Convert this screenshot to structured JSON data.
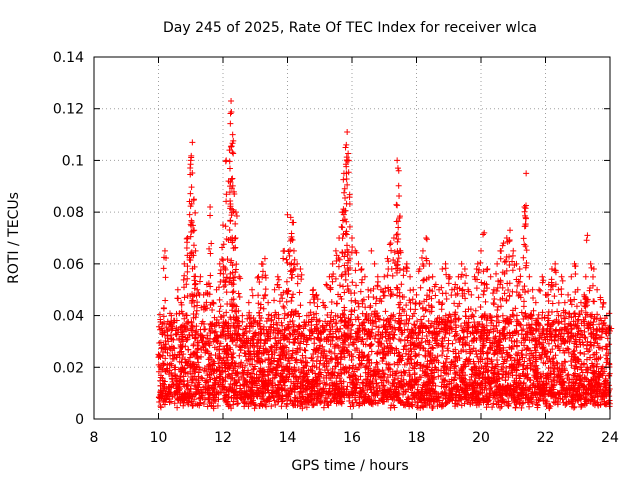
{
  "chart_data": {
    "type": "scatter",
    "title": "Day 245 of 2025, Rate Of TEC Index for receiver wlca",
    "xlabel": "GPS time / hours",
    "ylabel": "ROTI / TECUs",
    "xlim": [
      8,
      24
    ],
    "ylim": [
      0,
      0.14
    ],
    "xticks": [
      "8",
      "10",
      "12",
      "14",
      "16",
      "18",
      "20",
      "22",
      "24"
    ],
    "yticks": [
      "0",
      "0.02",
      "0.04",
      "0.06",
      "0.08",
      "0.1",
      "0.12",
      "0.14"
    ],
    "grid": true,
    "marker": "+",
    "color": "#ff0000",
    "series": [
      {
        "name": "ROTI",
        "x": [
          10.0,
          10.1,
          10.2,
          10.3,
          10.4,
          10.5,
          10.6,
          10.7,
          10.8,
          10.9,
          11.0,
          11.05,
          11.1,
          11.15,
          11.2,
          11.3,
          11.4,
          11.5,
          11.6,
          11.7,
          11.8,
          11.9,
          12.0,
          12.1,
          12.2,
          12.25,
          12.3,
          12.35,
          12.4,
          12.5,
          12.6,
          12.7,
          12.8,
          12.9,
          13.0,
          13.1,
          13.2,
          13.3,
          13.4,
          13.5,
          13.6,
          13.7,
          13.8,
          13.9,
          14.0,
          14.1,
          14.15,
          14.2,
          14.3,
          14.4,
          14.5,
          14.6,
          14.7,
          14.8,
          14.9,
          15.0,
          15.1,
          15.2,
          15.3,
          15.4,
          15.5,
          15.6,
          15.7,
          15.75,
          15.8,
          15.85,
          15.9,
          16.0,
          16.1,
          16.2,
          16.3,
          16.4,
          16.5,
          16.6,
          16.7,
          16.8,
          16.9,
          17.0,
          17.1,
          17.2,
          17.3,
          17.4,
          17.45,
          17.5,
          17.6,
          17.7,
          17.8,
          17.9,
          18.0,
          18.1,
          18.2,
          18.3,
          18.4,
          18.5,
          18.6,
          18.7,
          18.8,
          18.9,
          19.0,
          19.1,
          19.2,
          19.3,
          19.4,
          19.5,
          19.6,
          19.7,
          19.8,
          19.9,
          20.0,
          20.1,
          20.2,
          20.3,
          20.4,
          20.5,
          20.6,
          20.7,
          20.8,
          20.9,
          21.0,
          21.1,
          21.2,
          21.3,
          21.35,
          21.4,
          21.5,
          21.6,
          21.7,
          21.8,
          21.9,
          22.0,
          22.1,
          22.2,
          22.3,
          22.4,
          22.5,
          22.6,
          22.7,
          22.8,
          22.9,
          23.0,
          23.1,
          23.2,
          23.25,
          23.3,
          23.4,
          23.5,
          23.6,
          23.7,
          23.8,
          23.9,
          24.0
        ],
        "y": [
          0.025,
          0.035,
          0.065,
          0.03,
          0.04,
          0.038,
          0.05,
          0.045,
          0.06,
          0.07,
          0.1,
          0.107,
          0.085,
          0.065,
          0.05,
          0.055,
          0.048,
          0.052,
          0.082,
          0.045,
          0.05,
          0.06,
          0.075,
          0.1,
          0.104,
          0.123,
          0.11,
          0.087,
          0.08,
          0.055,
          0.04,
          0.035,
          0.045,
          0.05,
          0.038,
          0.055,
          0.06,
          0.062,
          0.045,
          0.04,
          0.05,
          0.055,
          0.048,
          0.065,
          0.079,
          0.078,
          0.076,
          0.065,
          0.06,
          0.058,
          0.035,
          0.04,
          0.045,
          0.05,
          0.048,
          0.038,
          0.045,
          0.052,
          0.055,
          0.06,
          0.065,
          0.07,
          0.08,
          0.095,
          0.105,
          0.111,
          0.1,
          0.07,
          0.065,
          0.06,
          0.058,
          0.055,
          0.05,
          0.065,
          0.06,
          0.055,
          0.05,
          0.055,
          0.062,
          0.068,
          0.07,
          0.1,
          0.096,
          0.065,
          0.058,
          0.06,
          0.055,
          0.05,
          0.048,
          0.058,
          0.065,
          0.07,
          0.06,
          0.055,
          0.052,
          0.05,
          0.058,
          0.06,
          0.055,
          0.05,
          0.052,
          0.055,
          0.06,
          0.058,
          0.05,
          0.048,
          0.055,
          0.06,
          0.065,
          0.072,
          0.058,
          0.055,
          0.05,
          0.06,
          0.065,
          0.068,
          0.07,
          0.073,
          0.065,
          0.06,
          0.058,
          0.05,
          0.082,
          0.095,
          0.055,
          0.05,
          0.045,
          0.05,
          0.055,
          0.048,
          0.052,
          0.058,
          0.06,
          0.05,
          0.055,
          0.045,
          0.048,
          0.055,
          0.06,
          0.05,
          0.045,
          0.048,
          0.055,
          0.071,
          0.06,
          0.058,
          0.05,
          0.047,
          0.045,
          0.04,
          0.035
        ]
      }
    ],
    "baseline_band": {
      "x_start": 10.0,
      "x_end": 24.0,
      "y_min": 0.004,
      "y_core": 0.02,
      "note": "dense cloud of points between roughly 0.005 and 0.04"
    }
  }
}
